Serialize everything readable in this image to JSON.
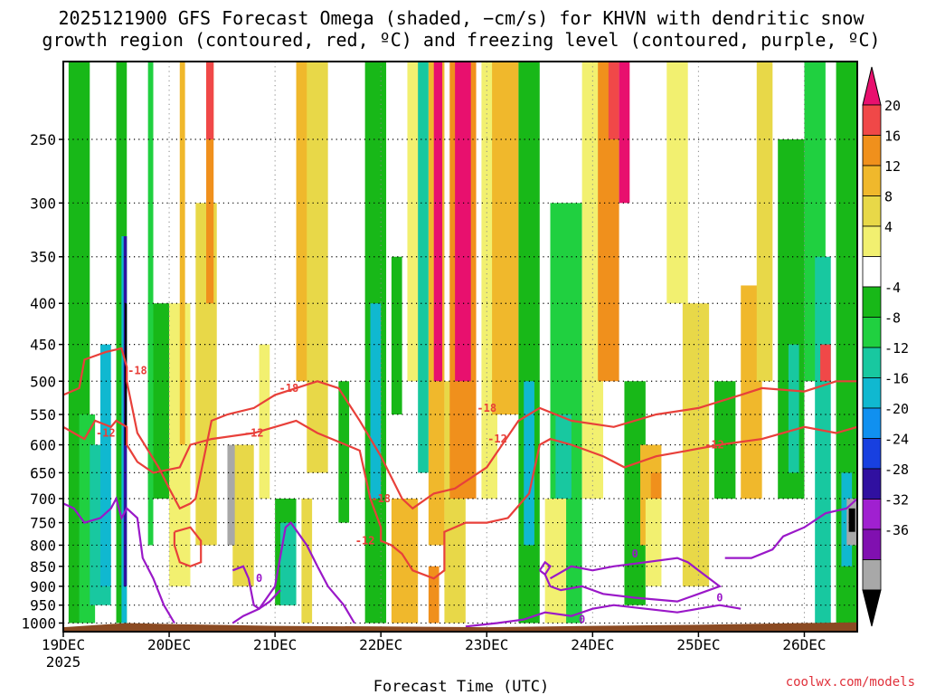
{
  "chart_data": {
    "type": "heatmap",
    "title_lines": [
      "2025121900 GFS Forecast Omega (shaded, −cm/s) for KHVN with dendritic snow",
      "growth region (contoured, red, ºC) and freezing level (contoured, purple, ºC)"
    ],
    "xlabel": "Forecast Time (UTC)",
    "credit": "coolwx.com/models",
    "x_ticks": [
      "19DEC",
      "20DEC",
      "21DEC",
      "22DEC",
      "23DEC",
      "24DEC",
      "25DEC",
      "26DEC"
    ],
    "x_year": "2025",
    "x_range_days": [
      0,
      7.5
    ],
    "y_ticks": [
      "250",
      "300",
      "350",
      "400",
      "450",
      "500",
      "550",
      "600",
      "650",
      "700",
      "750",
      "800",
      "850",
      "900",
      "950",
      "1000"
    ],
    "y_tick_values": [
      250,
      300,
      350,
      400,
      450,
      500,
      550,
      600,
      650,
      700,
      750,
      800,
      850,
      900,
      950,
      1000
    ],
    "y_range_hpa": [
      200,
      1025
    ],
    "colorbar": {
      "labels": [
        "20",
        "16",
        "12",
        "8",
        "4",
        "-4",
        "-8",
        "-12",
        "-16",
        "-20",
        "-24",
        "-28",
        "-32",
        "-36"
      ],
      "colors": [
        "#e8106e",
        "#f04848",
        "#f0901c",
        "#f0b82c",
        "#e8d848",
        "#f2f070",
        "#ffffff",
        "#18b818",
        "#20d040",
        "#18c8a0",
        "#10b8d0",
        "#1090f0",
        "#1840e0",
        "#3010a0",
        "#a020d0",
        "#8010b0",
        "#a8a8a8",
        "#000000"
      ]
    },
    "contours": {
      "red_labels": [
        "-18",
        "-18",
        "-18",
        "-18",
        "-12",
        "-12",
        "-12",
        "-12",
        "-12"
      ],
      "purple_labels": [
        "0",
        "0",
        "0",
        "0"
      ]
    },
    "shading_cells": [
      [
        0.05,
        0.25,
        150,
        1000,
        "#18b818"
      ],
      [
        0.15,
        0.3,
        550,
        1000,
        "#20d040"
      ],
      [
        0.25,
        0.45,
        600,
        950,
        "#18c8a0"
      ],
      [
        0.35,
        0.45,
        450,
        900,
        "#10b8d0"
      ],
      [
        0.5,
        0.6,
        80,
        1000,
        "#18b818"
      ],
      [
        0.55,
        0.6,
        330,
        1000,
        "#10b8d0"
      ],
      [
        0.57,
        0.6,
        330,
        900,
        "#3010a0"
      ],
      [
        0.58,
        0.6,
        400,
        600,
        "#000000"
      ],
      [
        0.8,
        1.0,
        400,
        700,
        "#18b818"
      ],
      [
        0.8,
        0.85,
        150,
        800,
        "#20d040"
      ],
      [
        1.0,
        1.2,
        400,
        900,
        "#f2f070"
      ],
      [
        1.1,
        1.15,
        150,
        600,
        "#f0b82c"
      ],
      [
        1.25,
        1.45,
        300,
        800,
        "#e8d848"
      ],
      [
        1.35,
        1.42,
        80,
        400,
        "#f0901c"
      ],
      [
        1.35,
        1.42,
        80,
        250,
        "#f04848"
      ],
      [
        1.6,
        1.8,
        600,
        900,
        "#e8d848"
      ],
      [
        1.85,
        1.95,
        450,
        700,
        "#f2f070"
      ],
      [
        2.0,
        2.2,
        700,
        950,
        "#18b818"
      ],
      [
        2.05,
        2.2,
        750,
        950,
        "#18c8a0"
      ],
      [
        2.2,
        2.35,
        200,
        500,
        "#f0b82c"
      ],
      [
        2.3,
        2.5,
        150,
        650,
        "#e8d848"
      ],
      [
        2.6,
        2.7,
        500,
        750,
        "#18b818"
      ],
      [
        2.85,
        3.05,
        200,
        1000,
        "#18b818"
      ],
      [
        2.9,
        3.0,
        400,
        700,
        "#10b8d0"
      ],
      [
        3.1,
        3.2,
        350,
        550,
        "#18b818"
      ],
      [
        3.25,
        3.4,
        80,
        500,
        "#f2f070"
      ],
      [
        3.35,
        3.45,
        80,
        650,
        "#18c8a0"
      ],
      [
        3.45,
        3.6,
        80,
        800,
        "#f0b82c"
      ],
      [
        3.5,
        3.58,
        80,
        500,
        "#e8106e"
      ],
      [
        3.6,
        3.8,
        500,
        1000,
        "#e8d848"
      ],
      [
        3.65,
        3.9,
        150,
        700,
        "#f0901c"
      ],
      [
        3.7,
        3.85,
        150,
        500,
        "#e8106e"
      ],
      [
        3.95,
        4.1,
        150,
        700,
        "#f2f070"
      ],
      [
        4.05,
        4.3,
        150,
        550,
        "#f0b82c"
      ],
      [
        4.3,
        4.5,
        200,
        1000,
        "#18b818"
      ],
      [
        4.35,
        4.45,
        500,
        800,
        "#10b8d0"
      ],
      [
        4.6,
        4.9,
        300,
        1000,
        "#20d040"
      ],
      [
        4.65,
        4.8,
        550,
        700,
        "#18c8a0"
      ],
      [
        4.9,
        5.1,
        80,
        700,
        "#f2f070"
      ],
      [
        5.05,
        5.25,
        80,
        500,
        "#f0901c"
      ],
      [
        5.15,
        5.25,
        80,
        250,
        "#f04848"
      ],
      [
        5.25,
        5.35,
        80,
        300,
        "#e8106e"
      ],
      [
        5.3,
        5.5,
        500,
        950,
        "#18b818"
      ],
      [
        5.45,
        5.65,
        600,
        800,
        "#f0b82c"
      ],
      [
        5.55,
        5.65,
        650,
        750,
        "#f0901c"
      ],
      [
        5.7,
        5.9,
        200,
        400,
        "#f2f070"
      ],
      [
        5.85,
        6.1,
        400,
        900,
        "#e8d848"
      ],
      [
        6.15,
        6.35,
        500,
        700,
        "#18b818"
      ],
      [
        6.4,
        6.6,
        380,
        700,
        "#f0b82c"
      ],
      [
        6.55,
        6.7,
        200,
        500,
        "#e8d848"
      ],
      [
        6.75,
        7.0,
        250,
        700,
        "#18b818"
      ],
      [
        6.85,
        6.95,
        450,
        650,
        "#18c8a0"
      ],
      [
        7.0,
        7.2,
        100,
        500,
        "#20d040"
      ],
      [
        7.1,
        7.25,
        350,
        1000,
        "#18c8a0"
      ],
      [
        7.15,
        7.25,
        450,
        500,
        "#f04848"
      ],
      [
        7.3,
        7.5,
        80,
        1000,
        "#18b818"
      ],
      [
        7.35,
        7.45,
        650,
        850,
        "#10b8d0"
      ],
      [
        7.4,
        7.5,
        700,
        800,
        "#a8a8a8"
      ],
      [
        7.42,
        7.48,
        720,
        770,
        "#000000"
      ],
      [
        1.55,
        1.62,
        600,
        800,
        "#a8a8a8"
      ],
      [
        2.25,
        2.35,
        700,
        1000,
        "#e8d848"
      ],
      [
        3.1,
        3.35,
        700,
        1000,
        "#f0b82c"
      ],
      [
        3.45,
        3.55,
        850,
        1000,
        "#f0901c"
      ],
      [
        4.55,
        4.75,
        700,
        1000,
        "#f2f070"
      ],
      [
        5.5,
        5.65,
        700,
        900,
        "#f2f070"
      ]
    ],
    "red_contours": [
      [
        [
          0,
          520
        ],
        [
          0.15,
          510
        ],
        [
          0.2,
          470
        ],
        [
          0.4,
          460
        ],
        [
          0.55,
          455
        ],
        [
          0.6,
          480
        ],
        [
          0.6,
          500
        ],
        [
          0.7,
          580
        ],
        [
          0.9,
          640
        ],
        [
          1.0,
          680
        ],
        [
          1.1,
          720
        ],
        [
          1.2,
          710
        ],
        [
          1.25,
          700
        ],
        [
          1.4,
          560
        ],
        [
          1.55,
          550
        ],
        [
          1.8,
          540
        ],
        [
          2.0,
          520
        ],
        [
          2.2,
          510
        ],
        [
          2.3,
          505
        ],
        [
          2.4,
          500
        ],
        [
          2.6,
          510
        ],
        [
          2.8,
          560
        ],
        [
          3.0,
          620
        ],
        [
          3.2,
          700
        ],
        [
          3.3,
          720
        ],
        [
          3.5,
          690
        ],
        [
          3.7,
          680
        ],
        [
          4.0,
          640
        ],
        [
          4.3,
          560
        ],
        [
          4.5,
          540
        ],
        [
          4.8,
          560
        ],
        [
          5.2,
          570
        ],
        [
          5.6,
          550
        ],
        [
          6.0,
          540
        ],
        [
          6.4,
          520
        ],
        [
          6.6,
          510
        ],
        [
          7.0,
          515
        ],
        [
          7.3,
          500
        ],
        [
          7.5,
          500
        ]
      ],
      [
        [
          0,
          570
        ],
        [
          0.1,
          580
        ],
        [
          0.2,
          590
        ],
        [
          0.3,
          560
        ],
        [
          0.45,
          570
        ],
        [
          0.5,
          560
        ],
        [
          0.6,
          570
        ],
        [
          0.6,
          600
        ],
        [
          0.7,
          630
        ],
        [
          0.85,
          650
        ],
        [
          1.1,
          640
        ],
        [
          1.2,
          600
        ],
        [
          1.4,
          590
        ],
        [
          1.8,
          580
        ],
        [
          2.0,
          570
        ],
        [
          2.2,
          560
        ],
        [
          2.4,
          580
        ],
        [
          2.8,
          610
        ],
        [
          2.9,
          700
        ],
        [
          3.0,
          760
        ],
        [
          3.0,
          790
        ],
        [
          3.1,
          800
        ],
        [
          3.2,
          820
        ],
        [
          3.3,
          860
        ],
        [
          3.5,
          880
        ],
        [
          3.6,
          860
        ],
        [
          3.6,
          770
        ],
        [
          3.8,
          750
        ],
        [
          4.0,
          750
        ],
        [
          4.2,
          740
        ],
        [
          4.4,
          690
        ],
        [
          4.5,
          600
        ],
        [
          4.6,
          590
        ],
        [
          4.8,
          600
        ],
        [
          5.1,
          620
        ],
        [
          5.3,
          640
        ],
        [
          5.6,
          620
        ],
        [
          5.9,
          610
        ],
        [
          6.2,
          600
        ],
        [
          6.6,
          590
        ],
        [
          7.0,
          570
        ],
        [
          7.3,
          580
        ],
        [
          7.5,
          570
        ]
      ],
      [
        [
          1.05,
          770
        ],
        [
          1.2,
          760
        ],
        [
          1.3,
          790
        ],
        [
          1.3,
          840
        ],
        [
          1.2,
          850
        ],
        [
          1.1,
          840
        ],
        [
          1.05,
          800
        ],
        [
          1.05,
          770
        ]
      ]
    ],
    "purple_contours": [
      [
        [
          0,
          710
        ],
        [
          0.1,
          720
        ],
        [
          0.2,
          750
        ],
        [
          0.35,
          740
        ],
        [
          0.45,
          720
        ],
        [
          0.5,
          700
        ],
        [
          0.55,
          740
        ],
        [
          0.6,
          720
        ],
        [
          0.7,
          740
        ],
        [
          0.75,
          830
        ],
        [
          0.85,
          880
        ],
        [
          0.95,
          950
        ],
        [
          1.05,
          1000
        ]
      ],
      [
        [
          1.6,
          1000
        ],
        [
          1.7,
          980
        ],
        [
          1.85,
          960
        ],
        [
          2.0,
          900
        ],
        [
          2.1,
          760
        ],
        [
          2.15,
          750
        ],
        [
          2.3,
          800
        ],
        [
          2.4,
          850
        ],
        [
          2.5,
          900
        ],
        [
          2.65,
          950
        ],
        [
          2.75,
          1000
        ]
      ],
      [
        [
          1.6,
          860
        ],
        [
          1.7,
          850
        ],
        [
          1.75,
          880
        ],
        [
          1.8,
          950
        ],
        [
          1.85,
          960
        ],
        [
          1.95,
          940
        ],
        [
          2.05,
          910
        ]
      ],
      [
        [
          3.8,
          1010
        ],
        [
          4.1,
          1000
        ],
        [
          4.35,
          990
        ],
        [
          4.55,
          970
        ],
        [
          4.8,
          980
        ],
        [
          5.0,
          960
        ],
        [
          5.2,
          950
        ],
        [
          5.5,
          960
        ],
        [
          5.8,
          970
        ],
        [
          6.0,
          960
        ],
        [
          6.2,
          950
        ],
        [
          6.4,
          960
        ]
      ],
      [
        [
          4.5,
          860
        ],
        [
          4.55,
          840
        ],
        [
          4.6,
          850
        ],
        [
          4.55,
          870
        ],
        [
          4.5,
          860
        ]
      ],
      [
        [
          4.55,
          870
        ],
        [
          4.6,
          900
        ],
        [
          4.7,
          910
        ],
        [
          4.9,
          900
        ],
        [
          5.1,
          920
        ],
        [
          5.4,
          930
        ],
        [
          5.8,
          940
        ],
        [
          6.0,
          920
        ],
        [
          6.2,
          900
        ],
        [
          6.0,
          860
        ],
        [
          5.9,
          840
        ],
        [
          5.8,
          830
        ],
        [
          5.5,
          840
        ],
        [
          5.2,
          850
        ],
        [
          5.0,
          860
        ],
        [
          4.8,
          850
        ],
        [
          4.6,
          880
        ]
      ],
      [
        [
          6.25,
          830
        ],
        [
          6.5,
          830
        ],
        [
          6.7,
          810
        ],
        [
          6.8,
          780
        ],
        [
          7.0,
          760
        ],
        [
          7.2,
          730
        ],
        [
          7.4,
          720
        ],
        [
          7.5,
          700
        ]
      ]
    ],
    "red_label_pos": [
      [
        0.7,
        485
      ],
      [
        2.13,
        510
      ],
      [
        3.0,
        700
      ],
      [
        4.0,
        540
      ],
      [
        0.4,
        580
      ],
      [
        1.8,
        580
      ],
      [
        4.1,
        590
      ],
      [
        6.15,
        600
      ],
      [
        2.85,
        790
      ]
    ],
    "purple_label_pos": [
      [
        1.85,
        880
      ],
      [
        5.4,
        820
      ],
      [
        6.2,
        930
      ],
      [
        4.9,
        990
      ]
    ]
  }
}
